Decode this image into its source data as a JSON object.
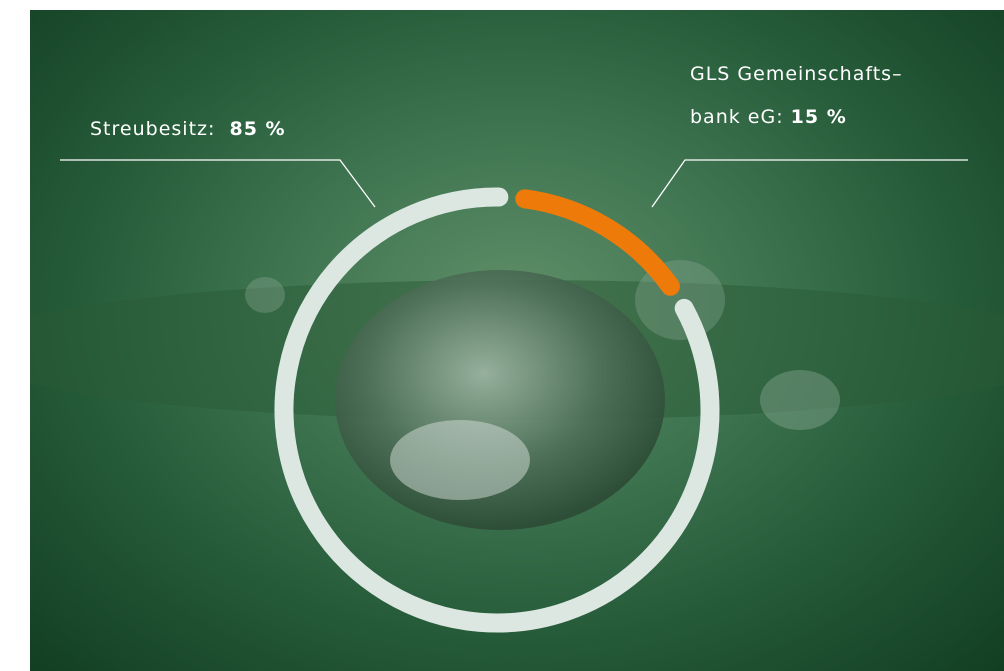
{
  "chart_data": {
    "type": "donut",
    "categories": [
      "Streubesitz:",
      "GLS Gemeinschafts–\nbank eG:"
    ],
    "values": [
      85,
      15
    ],
    "value_labels": [
      "85 %",
      "15 %"
    ],
    "colors": [
      "#dde7e2",
      "#ee7a0a"
    ]
  }
}
